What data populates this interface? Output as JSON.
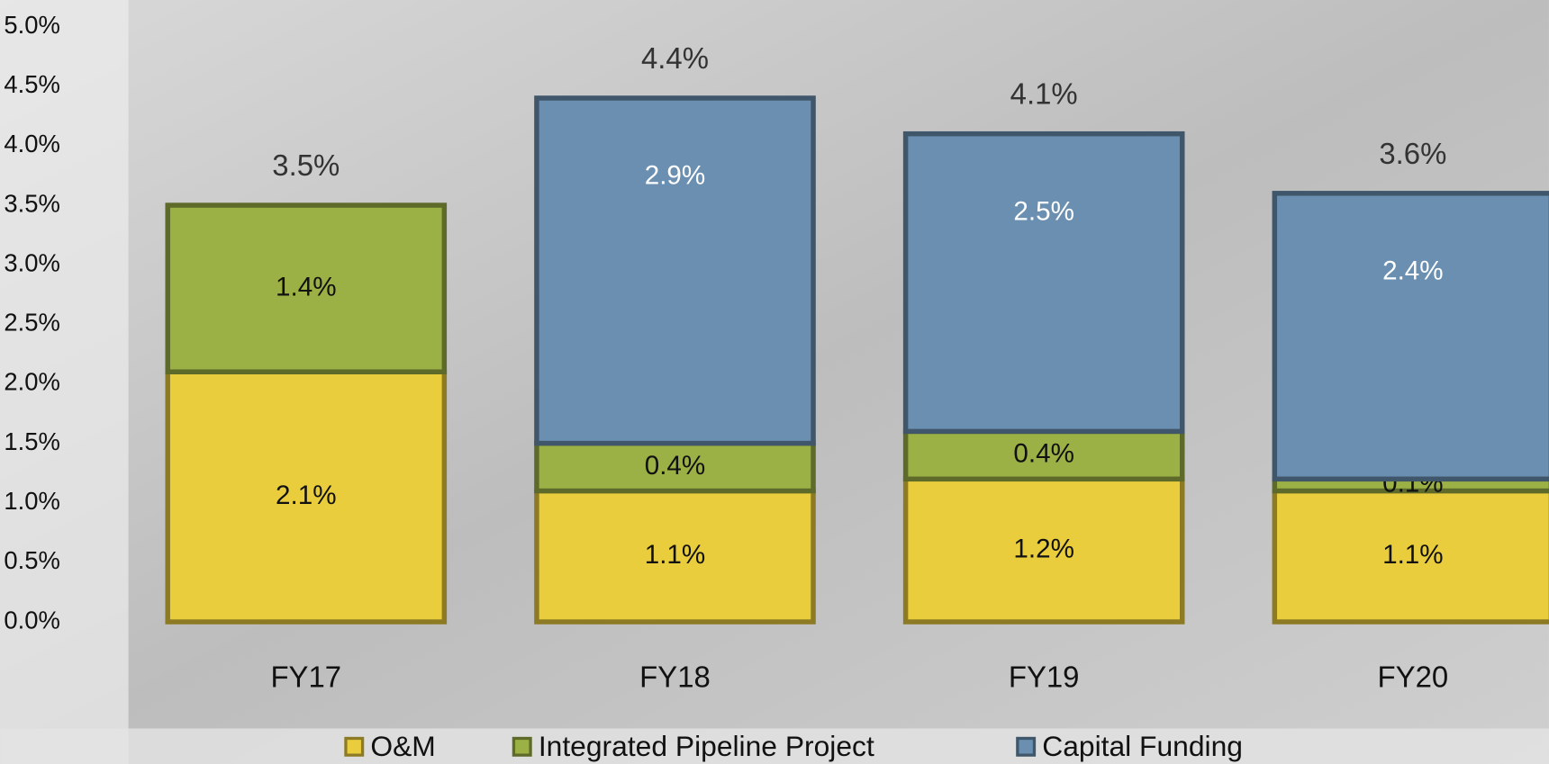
{
  "chart_data": {
    "type": "stacked-bar",
    "categories": [
      "FY17",
      "FY18",
      "FY19",
      "FY20"
    ],
    "series": [
      {
        "name": "O&M",
        "color": "#e9cd3c",
        "values": [
          2.1,
          1.1,
          1.2,
          1.1
        ],
        "value_labels": [
          "2.1%",
          "1.1%",
          "1.2%",
          "1.1%"
        ]
      },
      {
        "name": "Integrated Pipeline Project",
        "color": "#9bb045",
        "values": [
          1.4,
          0.4,
          0.4,
          0.1
        ],
        "value_labels": [
          "1.4%",
          "0.4%",
          "0.4%",
          "0.1%"
        ]
      },
      {
        "name": "Capital Funding",
        "color": "#6a8fb0",
        "values": [
          null,
          2.9,
          2.5,
          2.4
        ],
        "value_labels": [
          null,
          "2.9%",
          "2.5%",
          "2.4%"
        ]
      }
    ],
    "totals": [
      3.5,
      4.4,
      4.1,
      3.6
    ],
    "total_labels": [
      "3.5%",
      "4.4%",
      "4.1%",
      "3.6%"
    ],
    "ylim": [
      0,
      5
    ],
    "yticks": [
      {
        "value": 0,
        "label": "0.0%"
      },
      {
        "value": 0.5,
        "label": "0.5%"
      },
      {
        "value": 1,
        "label": "1.0%"
      },
      {
        "value": 1.5,
        "label": "1.5%"
      },
      {
        "value": 2,
        "label": "2.0%"
      },
      {
        "value": 2.5,
        "label": "2.5%"
      },
      {
        "value": 3,
        "label": "3.0%"
      },
      {
        "value": 3.5,
        "label": "3.5%"
      },
      {
        "value": 4,
        "label": "4.0%"
      },
      {
        "value": 4.5,
        "label": "4.5%"
      },
      {
        "value": 5,
        "label": "5.0%"
      }
    ],
    "grid": false,
    "legend": "bottom"
  }
}
